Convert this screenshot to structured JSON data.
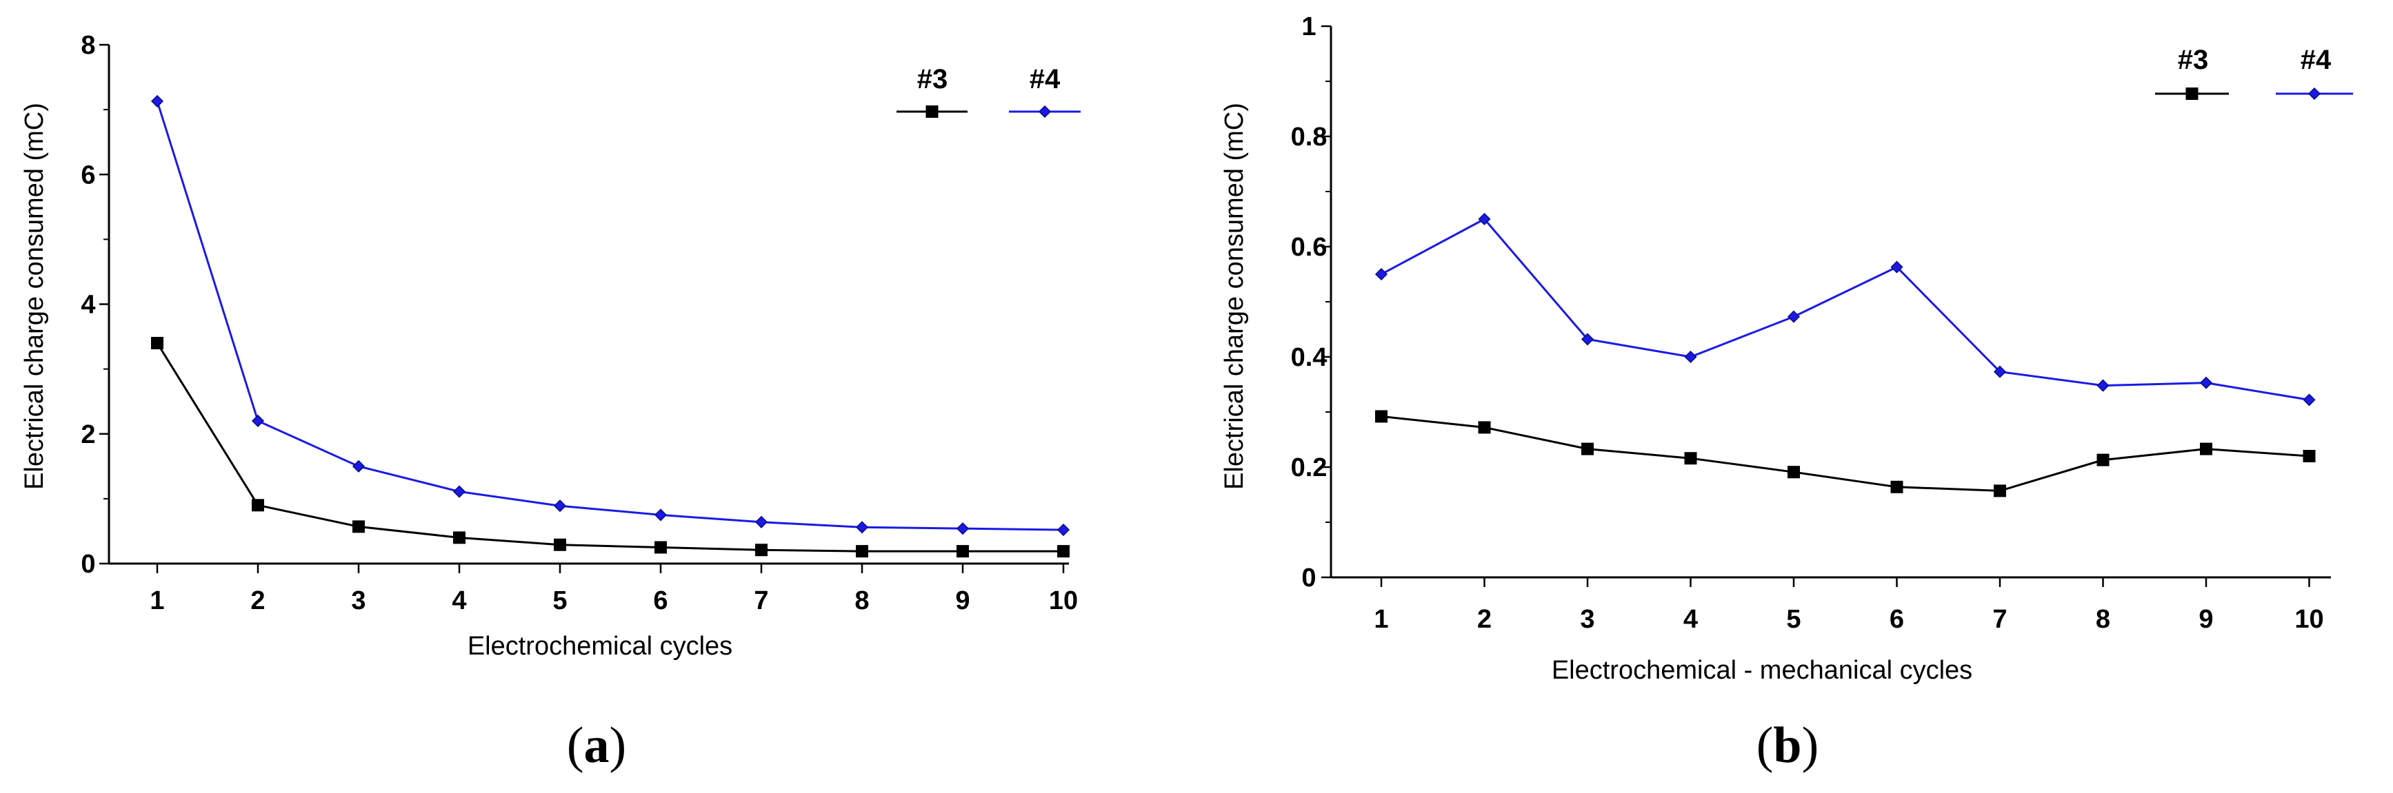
{
  "chart_data": [
    {
      "type": "line",
      "panel_label": "a",
      "xlabel": "Electrochemical cycles",
      "ylabel": "Electrical charge consumed (mC)",
      "categories": [
        "1",
        "2",
        "3",
        "4",
        "5",
        "6",
        "7",
        "8",
        "9",
        "10"
      ],
      "ylim": [
        0,
        8
      ],
      "yticks": [
        "0",
        "2",
        "4",
        "6",
        "8"
      ],
      "legend_position": "top-right",
      "series": [
        {
          "name": "#3",
          "color": "#000000",
          "marker": "square",
          "values": [
            3.4,
            0.9,
            0.57,
            0.4,
            0.29,
            0.25,
            0.21,
            0.19,
            0.19,
            0.19
          ]
        },
        {
          "name": "#4",
          "color": "#1a1ae6",
          "marker": "diamond",
          "values": [
            7.13,
            2.2,
            1.5,
            1.11,
            0.89,
            0.75,
            0.64,
            0.56,
            0.54,
            0.52
          ]
        }
      ]
    },
    {
      "type": "line",
      "panel_label": "b",
      "xlabel": "Electrochemical - mechanical cycles",
      "ylabel": "Electrical charge consumed (mC)",
      "categories": [
        "1",
        "2",
        "3",
        "4",
        "5",
        "6",
        "7",
        "8",
        "9",
        "10"
      ],
      "ylim": [
        0,
        1
      ],
      "yticks": [
        "0",
        "0.2",
        "0.4",
        "0.6",
        "0.8",
        "1"
      ],
      "legend_position": "top-right",
      "series": [
        {
          "name": "#3",
          "color": "#000000",
          "marker": "square",
          "values": [
            0.292,
            0.272,
            0.233,
            0.216,
            0.191,
            0.164,
            0.157,
            0.213,
            0.233,
            0.22
          ]
        },
        {
          "name": "#4",
          "color": "#1a1ae6",
          "marker": "diamond",
          "values": [
            0.55,
            0.65,
            0.432,
            0.4,
            0.473,
            0.563,
            0.373,
            0.348,
            0.353,
            0.322
          ]
        }
      ]
    }
  ]
}
